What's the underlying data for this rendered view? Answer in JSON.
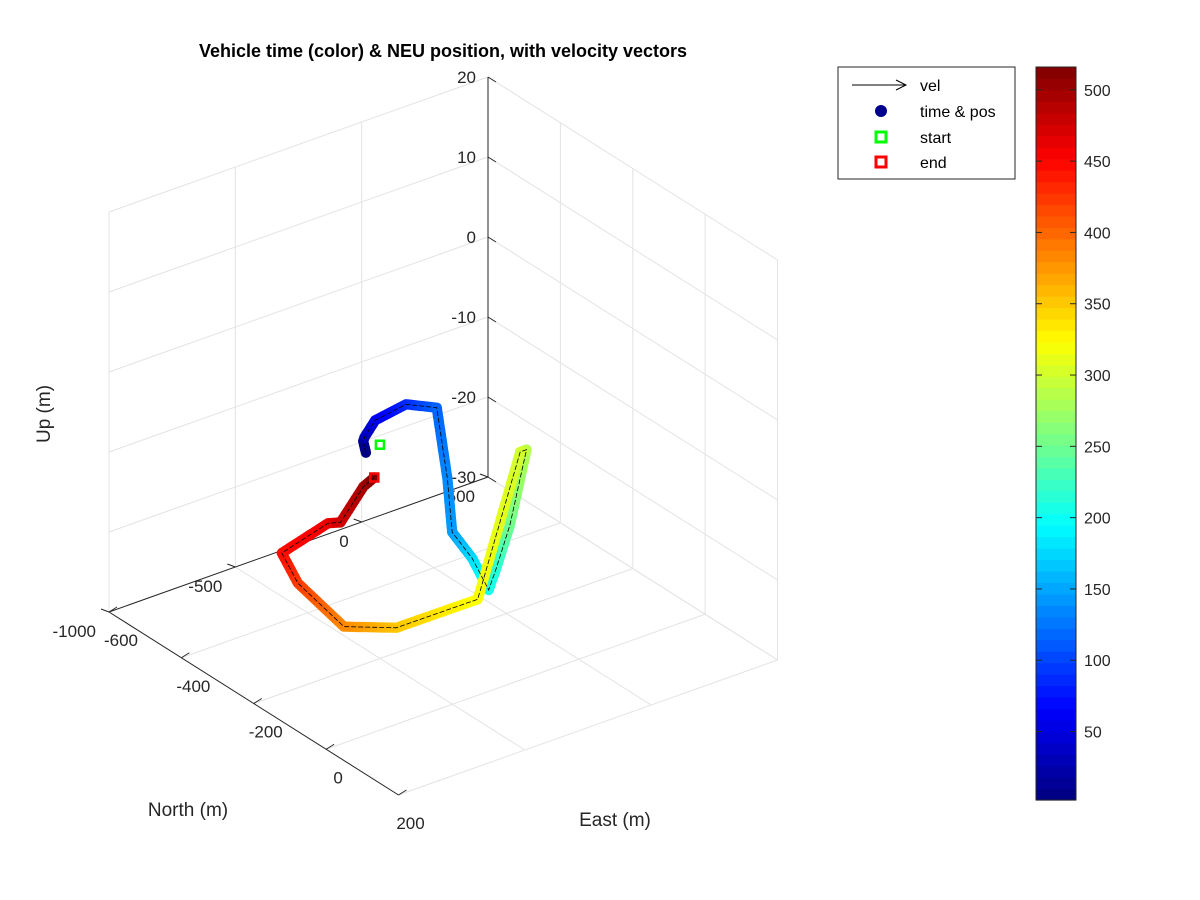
{
  "chart_data": {
    "type": "scatter3d",
    "title": "Vehicle time (color) & NEU position, with velocity vectors",
    "xlabel": "East (m)",
    "ylabel": "North (m)",
    "zlabel": "Up (m)",
    "x_ticks": [
      "-600",
      "-400",
      "-200",
      "0",
      "200"
    ],
    "y_ticks": [
      "500",
      "0",
      "-500",
      "-1000"
    ],
    "z_ticks": [
      "20",
      "10",
      "0",
      "-10",
      "-20",
      "-30"
    ],
    "xlim": [
      -600,
      200
    ],
    "ylim": [
      -1000,
      500
    ],
    "zlim": [
      -30,
      20
    ],
    "grid": true,
    "colormap": "jet",
    "colorbar_ticks": [
      "500",
      "450",
      "400",
      "350",
      "300",
      "250",
      "200",
      "150",
      "100",
      "50"
    ],
    "colorbar_range": [
      2,
      516
    ],
    "legend_position": "top-right",
    "legend": [
      {
        "label": "vel",
        "marker": "arrow",
        "color": "#000000"
      },
      {
        "label": "time & pos",
        "marker": "filled-circle",
        "color": "#00008f"
      },
      {
        "label": "start",
        "marker": "open-square",
        "color": "#00ff00"
      },
      {
        "label": "end",
        "marker": "open-square",
        "color": "#ff0000"
      }
    ],
    "trajectory_keypoints": [
      {
        "t": 2,
        "east": -700,
        "north": 160,
        "up": -26
      },
      {
        "t": 10,
        "east": -690,
        "north": 135,
        "up": -24
      },
      {
        "t": 25,
        "east": -655,
        "north": 90,
        "up": -22
      },
      {
        "t": 55,
        "east": -580,
        "north": 25,
        "up": -17
      },
      {
        "t": 85,
        "east": -460,
        "north": -25,
        "up": -11
      },
      {
        "t": 115,
        "east": -375,
        "north": -25,
        "up": -9
      },
      {
        "t": 135,
        "east": -325,
        "north": -55,
        "up": -16
      },
      {
        "t": 145,
        "east": -280,
        "north": -100,
        "up": -21
      },
      {
        "t": 175,
        "east": -120,
        "north": -250,
        "up": -18
      },
      {
        "t": 205,
        "east": -15,
        "north": -335,
        "up": -18
      },
      {
        "t": 215,
        "east": -25,
        "north": -290,
        "up": -16
      },
      {
        "t": 250,
        "east": 50,
        "north": -345,
        "up": -8
      },
      {
        "t": 285,
        "east": 100,
        "north": -350,
        "up": 3
      },
      {
        "t": 300,
        "east": 100,
        "north": -375,
        "up": 3
      },
      {
        "t": 320,
        "east": 0,
        "north": -400,
        "up": -18
      },
      {
        "t": 350,
        "east": -225,
        "north": -400,
        "up": -28
      },
      {
        "t": 380,
        "east": -370,
        "north": -400,
        "up": -32
      },
      {
        "t": 420,
        "east": -560,
        "north": -310,
        "up": -33
      },
      {
        "t": 445,
        "east": -660,
        "north": -230,
        "up": -33
      },
      {
        "t": 460,
        "east": -630,
        "north": -90,
        "up": -30
      },
      {
        "t": 475,
        "east": -620,
        "north": -55,
        "up": -30
      },
      {
        "t": 495,
        "east": -630,
        "north": 50,
        "up": -27
      },
      {
        "t": 516,
        "east": -600,
        "north": 50,
        "up": -25
      }
    ]
  }
}
